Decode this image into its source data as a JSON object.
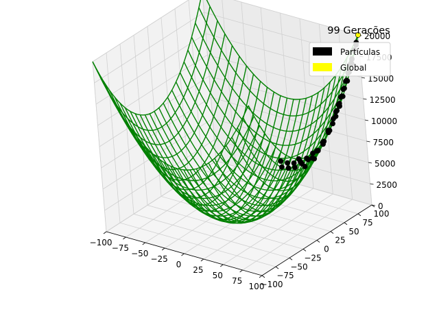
{
  "chart_data": {
    "type": "surface3d",
    "title": "99 Gerações",
    "xlabel": "",
    "ylabel": "",
    "zlabel": "",
    "xlim": [
      -100,
      100
    ],
    "ylim": [
      -100,
      100
    ],
    "zlim": [
      0,
      20000
    ],
    "x_ticks": [
      -100,
      -75,
      -50,
      -25,
      0,
      25,
      50,
      75,
      100
    ],
    "y_ticks": [
      -100,
      -75,
      -50,
      -25,
      0,
      25,
      50,
      75,
      100
    ],
    "z_ticks": [
      0,
      2500,
      5000,
      7500,
      10000,
      12500,
      15000,
      17500,
      20000
    ],
    "surface": {
      "function": "x^2 + y^2",
      "color": "#008000"
    },
    "legend": {
      "placement": "top-right",
      "entries": [
        {
          "label": "Partículas",
          "color": "#000000"
        },
        {
          "label": "Global",
          "color": "#ffff00"
        }
      ]
    },
    "series": [
      {
        "name": "Partículas",
        "color": "#000000",
        "points": [
          [
            100,
            100,
            20000
          ],
          [
            99,
            97,
            19210
          ],
          [
            98,
            94,
            18440
          ],
          [
            100,
            92,
            18464
          ],
          [
            97,
            90,
            17509
          ],
          [
            96,
            88,
            16960
          ],
          [
            99,
            86,
            17197
          ],
          [
            95,
            84,
            16081
          ],
          [
            98,
            82,
            16328
          ],
          [
            94,
            80,
            15236
          ],
          [
            97,
            78,
            15493
          ],
          [
            93,
            76,
            14425
          ],
          [
            96,
            74,
            14692
          ],
          [
            92,
            72,
            13648
          ],
          [
            95,
            70,
            13925
          ],
          [
            91,
            68,
            12905
          ],
          [
            94,
            66,
            13192
          ],
          [
            90,
            64,
            12196
          ],
          [
            93,
            62,
            12493
          ],
          [
            89,
            60,
            11521
          ],
          [
            100,
            58,
            13364
          ],
          [
            100,
            50,
            12500
          ],
          [
            99,
            45,
            11826
          ],
          [
            98,
            40,
            11204
          ],
          [
            100,
            35,
            11225
          ],
          [
            97,
            30,
            10309
          ],
          [
            99,
            25,
            10426
          ],
          [
            96,
            20,
            9616
          ],
          [
            98,
            15,
            9829
          ],
          [
            95,
            10,
            9125
          ],
          [
            100,
            5,
            10025
          ],
          [
            97,
            0,
            9409
          ],
          [
            99,
            -5,
            9826
          ],
          [
            96,
            -10,
            9316
          ],
          [
            98,
            -15,
            9829
          ],
          [
            94,
            -20,
            9236
          ],
          [
            97,
            -25,
            10034
          ],
          [
            93,
            -30,
            9549
          ],
          [
            96,
            -35,
            10441
          ],
          [
            92,
            -40,
            10064
          ],
          [
            100,
            95,
            19025
          ],
          [
            100,
            85,
            17225
          ],
          [
            100,
            75,
            15625
          ],
          [
            100,
            65,
            14225
          ],
          [
            85,
            55,
            10250
          ],
          [
            88,
            40,
            9344
          ],
          [
            90,
            20,
            8500
          ],
          [
            92,
            0,
            8464
          ],
          [
            95,
            -45,
            11050
          ],
          [
            100,
            -20,
            10400
          ]
        ]
      },
      {
        "name": "Global",
        "color": "#ffff00",
        "points": [
          [
            100,
            100,
            20000
          ]
        ]
      }
    ]
  }
}
